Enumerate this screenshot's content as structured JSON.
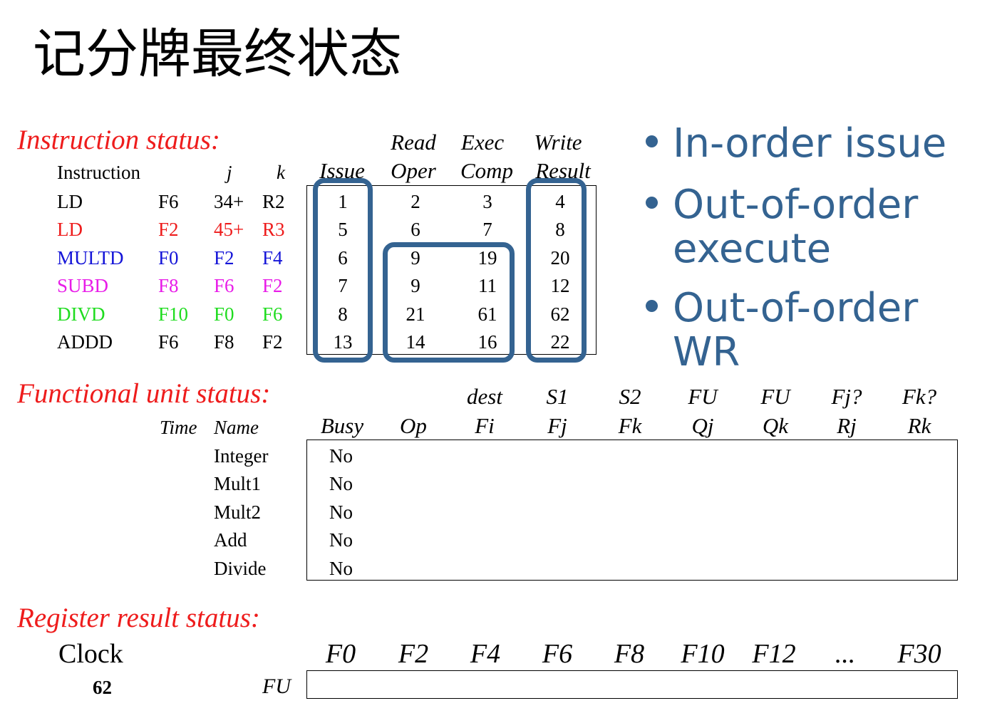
{
  "title": "记分牌最终状态",
  "instruction_status": {
    "heading": "Instruction status:",
    "col_headers": {
      "instruction": "Instruction",
      "j": "j",
      "k": "k",
      "issue": "Issue",
      "read_top": "Read",
      "read_bottom": "Oper",
      "exec_top": "Exec",
      "exec_bottom": "Comp",
      "write_top": "Write",
      "write_bottom": "Result"
    },
    "rows": [
      {
        "op": "LD",
        "dest": "F6",
        "j": "34+",
        "k": "R2",
        "issue": "1",
        "read": "2",
        "exec": "3",
        "write": "4",
        "color": "#000000"
      },
      {
        "op": "LD",
        "dest": "F2",
        "j": "45+",
        "k": "R3",
        "issue": "5",
        "read": "6",
        "exec": "7",
        "write": "8",
        "color": "#ee1c1c"
      },
      {
        "op": "MULTD",
        "dest": "F0",
        "j": "F2",
        "k": "F4",
        "issue": "6",
        "read": "9",
        "exec": "19",
        "write": "20",
        "color": "#1515d8"
      },
      {
        "op": "SUBD",
        "dest": "F8",
        "j": "F6",
        "k": "F2",
        "issue": "7",
        "read": "9",
        "exec": "11",
        "write": "12",
        "color": "#e81de8"
      },
      {
        "op": "DIVD",
        "dest": "F10",
        "j": "F0",
        "k": "F6",
        "issue": "8",
        "read": "21",
        "exec": "61",
        "write": "62",
        "color": "#1fdc1f"
      },
      {
        "op": "ADDD",
        "dest": "F6",
        "j": "F8",
        "k": "F2",
        "issue": "13",
        "read": "14",
        "exec": "16",
        "write": "22",
        "color": "#000000"
      }
    ]
  },
  "bullets": [
    "In-order issue",
    "Out-of-order execute",
    "Out-of-order WR"
  ],
  "bullet_lines": [
    [
      "In-order issue"
    ],
    [
      "Out-of-order",
      "execute"
    ],
    [
      "Out-of-order",
      "WR"
    ]
  ],
  "accent_color": "#346391",
  "functional_unit_status": {
    "heading": "Functional unit status:",
    "col_top": {
      "fi": "dest",
      "fj": "S1",
      "fk": "S2",
      "qj": "FU",
      "qk": "FU",
      "rj": "Fj?",
      "rk": "Fk?"
    },
    "col_bottom": {
      "time": "Time",
      "name": "Name",
      "busy": "Busy",
      "op": "Op",
      "fi": "Fi",
      "fj": "Fj",
      "fk": "Fk",
      "qj": "Qj",
      "qk": "Qk",
      "rj": "Rj",
      "rk": "Rk"
    },
    "units": [
      {
        "name": "Integer",
        "busy": "No"
      },
      {
        "name": "Mult1",
        "busy": "No"
      },
      {
        "name": "Mult2",
        "busy": "No"
      },
      {
        "name": "Add",
        "busy": "No"
      },
      {
        "name": "Divide",
        "busy": "No"
      }
    ]
  },
  "register_result_status": {
    "heading": "Register result status:",
    "clock_label": "Clock",
    "clock_value": "62",
    "fu_label": "FU",
    "registers": [
      "F0",
      "F2",
      "F4",
      "F6",
      "F8",
      "F10",
      "F12",
      "...",
      "F30"
    ]
  }
}
